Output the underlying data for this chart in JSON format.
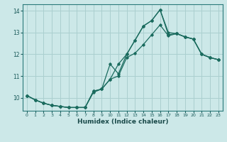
{
  "title": "",
  "xlabel": "Humidex (Indice chaleur)",
  "ylabel": "",
  "background_color": "#cce8e8",
  "grid_color": "#aacfcf",
  "line_color": "#1a6b5e",
  "xlim": [
    -0.5,
    23.5
  ],
  "ylim": [
    9.4,
    14.3
  ],
  "yticks": [
    10,
    11,
    12,
    13,
    14
  ],
  "xticks": [
    0,
    1,
    2,
    3,
    4,
    5,
    6,
    7,
    8,
    9,
    10,
    11,
    12,
    13,
    14,
    15,
    16,
    17,
    18,
    19,
    20,
    21,
    22,
    23
  ],
  "line1_x": [
    0,
    1,
    2,
    3,
    4,
    5,
    6,
    7,
    8,
    9,
    10,
    11,
    12,
    13,
    14,
    15,
    16,
    17,
    18,
    19,
    20,
    21,
    22,
    23
  ],
  "line1_y": [
    10.1,
    9.9,
    9.75,
    9.65,
    9.6,
    9.55,
    9.55,
    9.55,
    10.3,
    10.4,
    10.85,
    11.55,
    12.0,
    12.65,
    13.3,
    13.55,
    14.05,
    12.9,
    12.95,
    12.8,
    12.7,
    12.0,
    11.85,
    11.75
  ],
  "line2_x": [
    0,
    1,
    2,
    3,
    4,
    5,
    6,
    7,
    8,
    9,
    10,
    11,
    12,
    13,
    14,
    15,
    16,
    17,
    18,
    19,
    20,
    21,
    22,
    23
  ],
  "line2_y": [
    10.1,
    9.9,
    9.75,
    9.65,
    9.6,
    9.55,
    9.55,
    9.55,
    10.3,
    10.4,
    11.55,
    11.1,
    12.0,
    12.65,
    13.3,
    13.55,
    14.05,
    13.0,
    12.95,
    12.8,
    12.7,
    12.0,
    11.85,
    11.75
  ],
  "line3_x": [
    0,
    1,
    2,
    3,
    4,
    5,
    6,
    7,
    8,
    9,
    10,
    11,
    12,
    13,
    14,
    15,
    16,
    17,
    18,
    19,
    20,
    21,
    22,
    23
  ],
  "line3_y": [
    10.1,
    9.9,
    9.75,
    9.65,
    9.6,
    9.55,
    9.55,
    9.55,
    10.25,
    10.4,
    10.85,
    11.0,
    11.85,
    12.05,
    12.45,
    12.9,
    13.35,
    12.85,
    12.95,
    12.8,
    12.7,
    12.0,
    11.85,
    11.75
  ]
}
